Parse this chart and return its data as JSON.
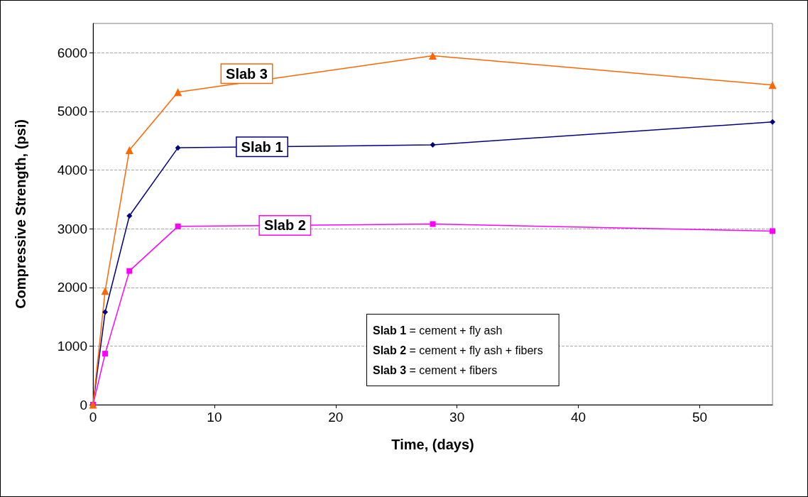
{
  "chart_data": {
    "type": "line",
    "xlabel": "Time, (days)",
    "ylabel": "Compressive Strength, (psi)",
    "x": [
      0,
      1,
      3,
      7,
      28,
      56
    ],
    "series": [
      {
        "name": "Slab 1",
        "color": "#000080",
        "marker": "diamond",
        "values": [
          0,
          1580,
          3220,
          4380,
          4430,
          4820
        ]
      },
      {
        "name": "Slab 2",
        "color": "#ff00ff",
        "marker": "square",
        "values": [
          0,
          870,
          2280,
          3040,
          3080,
          2960
        ]
      },
      {
        "name": "Slab 3",
        "color": "#ff6600",
        "marker": "triangle",
        "values": [
          0,
          1940,
          4340,
          5330,
          5950,
          5450
        ]
      }
    ],
    "xlim": [
      0,
      56
    ],
    "xticks": [
      0,
      10,
      20,
      30,
      40,
      50
    ],
    "ylim": [
      0,
      6500
    ],
    "yticks": [
      0,
      1000,
      2000,
      3000,
      4000,
      5000,
      6000
    ],
    "grid": "y",
    "legend": false,
    "line_style": "solid",
    "annotations": [
      "Slab 1 = cement + fly ash",
      "Slab 2 = cement + fly ash + fibers",
      "Slab 3 = cement + fibers"
    ]
  }
}
